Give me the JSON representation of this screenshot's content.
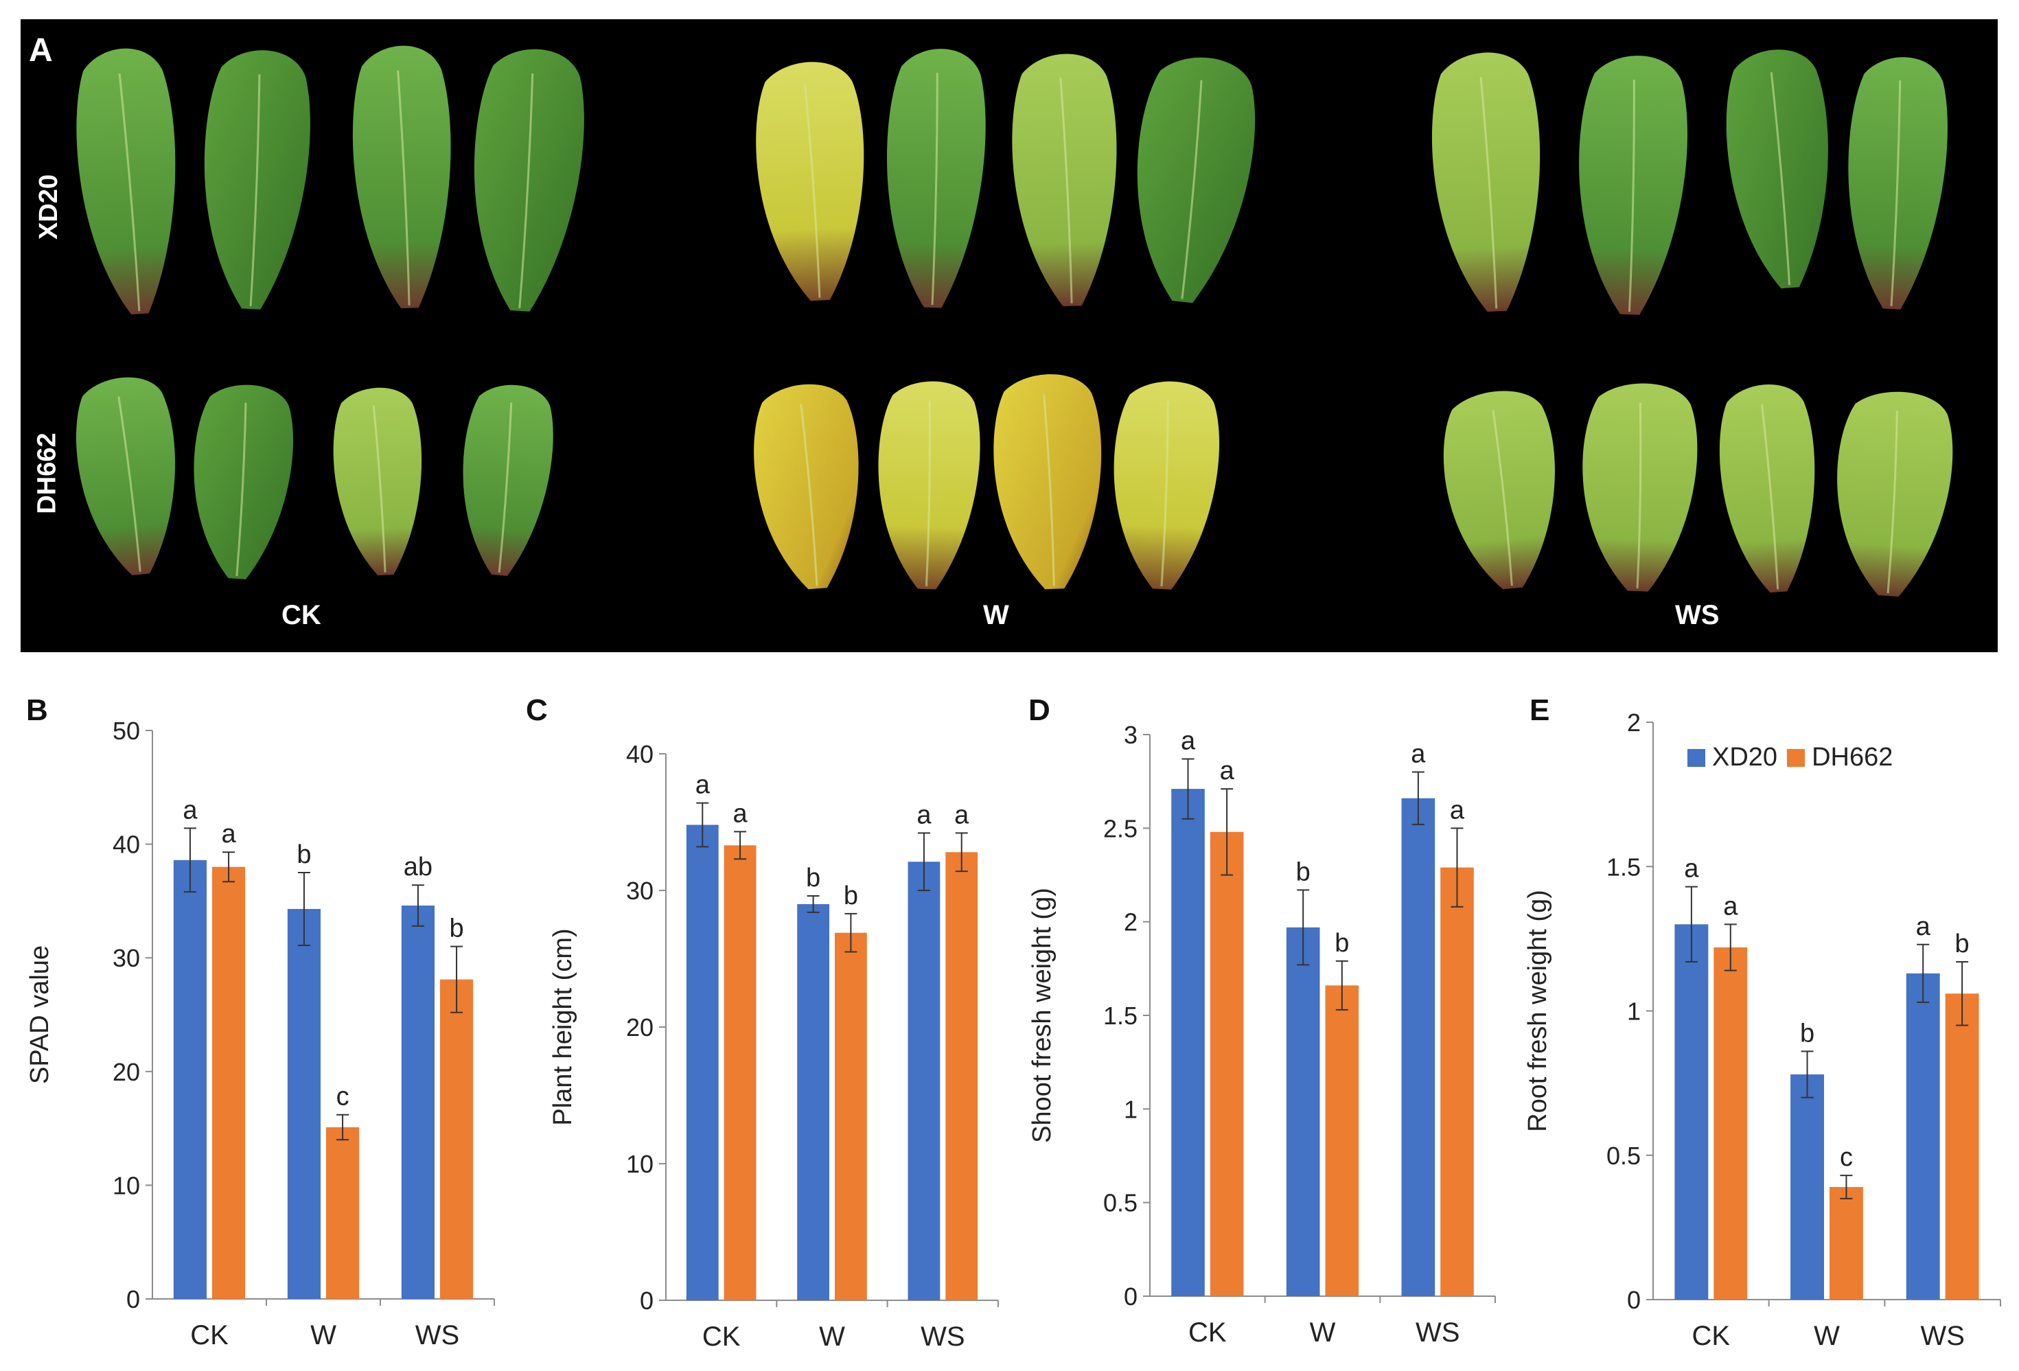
{
  "panel_a": {
    "letter": "A",
    "rows": [
      "XD20",
      "DH662"
    ],
    "columns": [
      "CK",
      "W",
      "WS"
    ]
  },
  "legend": {
    "series": [
      {
        "name": "XD20",
        "color": "#4472c4"
      },
      {
        "name": "DH662",
        "color": "#ed7d31"
      }
    ]
  },
  "chart_data": [
    {
      "panel": "B",
      "type": "bar",
      "categories": [
        "CK",
        "W",
        "WS"
      ],
      "ylabel": "SPAD value",
      "ylim": [
        0,
        50
      ],
      "yticks": [
        "0",
        "10",
        "20",
        "30",
        "40",
        "50"
      ],
      "series": [
        {
          "name": "XD20",
          "color": "#4472c4",
          "values": [
            38.6,
            34.3,
            34.6
          ],
          "errors": [
            2.8,
            3.2,
            1.8
          ],
          "letters": [
            "a",
            "b",
            "ab"
          ]
        },
        {
          "name": "DH662",
          "color": "#ed7d31",
          "values": [
            38.0,
            15.1,
            28.1
          ],
          "errors": [
            1.3,
            1.1,
            2.9
          ],
          "letters": [
            "a",
            "c",
            "b"
          ]
        }
      ]
    },
    {
      "panel": "C",
      "type": "bar",
      "categories": [
        "CK",
        "W",
        "WS"
      ],
      "ylabel": "Plant height (cm)",
      "ylim": [
        0,
        40
      ],
      "yticks": [
        "0",
        "10",
        "20",
        "30",
        "40"
      ],
      "series": [
        {
          "name": "XD20",
          "color": "#4472c4",
          "values": [
            34.8,
            29.0,
            32.1
          ],
          "errors": [
            1.6,
            0.6,
            2.1
          ],
          "letters": [
            "a",
            "b",
            "a"
          ]
        },
        {
          "name": "DH662",
          "color": "#ed7d31",
          "values": [
            33.3,
            26.9,
            32.8
          ],
          "errors": [
            1.0,
            1.4,
            1.4
          ],
          "letters": [
            "a",
            "b",
            "a"
          ]
        }
      ]
    },
    {
      "panel": "D",
      "type": "bar",
      "categories": [
        "CK",
        "W",
        "WS"
      ],
      "ylabel": "Shoot fresh weight (g)",
      "ylim": [
        0,
        3
      ],
      "yticks": [
        "0",
        "0.5",
        "1",
        "1.5",
        "2",
        "2.5",
        "3"
      ],
      "series": [
        {
          "name": "XD20",
          "color": "#4472c4",
          "values": [
            2.71,
            1.97,
            2.66
          ],
          "errors": [
            0.16,
            0.2,
            0.14
          ],
          "letters": [
            "a",
            "b",
            "a"
          ]
        },
        {
          "name": "DH662",
          "color": "#ed7d31",
          "values": [
            2.48,
            1.66,
            2.29
          ],
          "errors": [
            0.23,
            0.13,
            0.21
          ],
          "letters": [
            "a",
            "b",
            "a"
          ]
        }
      ]
    },
    {
      "panel": "E",
      "type": "bar",
      "categories": [
        "CK",
        "W",
        "WS"
      ],
      "ylabel": "Root fresh weight (g)",
      "ylim": [
        0,
        2
      ],
      "yticks": [
        "0",
        "0.5",
        "1",
        "1.5",
        "2"
      ],
      "series": [
        {
          "name": "XD20",
          "color": "#4472c4",
          "values": [
            1.3,
            0.78,
            1.13
          ],
          "errors": [
            0.13,
            0.08,
            0.1
          ],
          "letters": [
            "a",
            "b",
            "a"
          ]
        },
        {
          "name": "DH662",
          "color": "#ed7d31",
          "values": [
            1.22,
            0.39,
            1.06
          ],
          "errors": [
            0.08,
            0.04,
            0.11
          ],
          "letters": [
            "a",
            "c",
            "b"
          ]
        }
      ]
    }
  ]
}
